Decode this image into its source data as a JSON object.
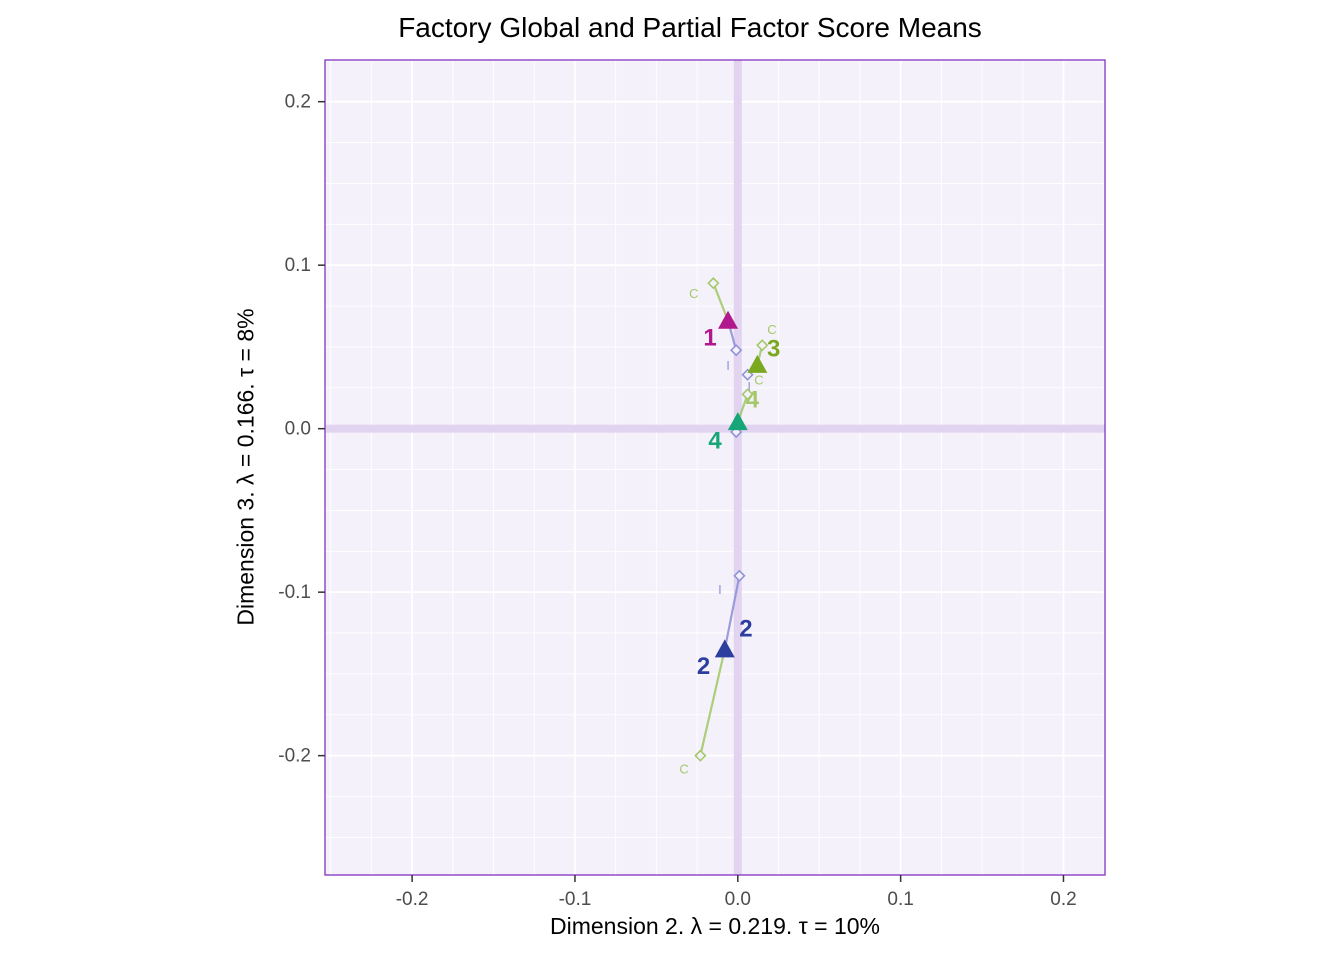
{
  "chart_data": {
    "type": "scatter",
    "title": "Factory Global and Partial Factor Score Means",
    "xlabel": "Dimension 2.   λ = 0.219.  τ = 10%",
    "ylabel": "Dimension 3.   λ = 0.166.  τ = 8%",
    "axes": {
      "xlim": [
        -0.2535,
        0.2255
      ],
      "ylim": [
        -0.273,
        0.2255
      ],
      "x_tick_labels": [
        "-0.2",
        "-0.1",
        "0.0",
        "0.1",
        "0.2"
      ],
      "x_tick_values": [
        -0.2,
        -0.1,
        0,
        0.1,
        0.2
      ],
      "y_tick_labels": [
        "-0.2",
        "-0.1",
        "0.0",
        "0.1",
        "0.2"
      ],
      "y_tick_values": [
        -0.2,
        -0.1,
        0,
        0.1,
        0.2
      ],
      "minor_step": 0.025,
      "grid_on": true,
      "grid_color": "#ffffff",
      "panel_bg": "#f5f1fa",
      "panel_border": "#8b3fc6",
      "zero_band_color": "#e2d3f1",
      "tick_color": "#333333",
      "tick_label_color": "#4d4d4d"
    },
    "tables": {
      "C": {
        "label": "C",
        "color": "#a4c96b"
      },
      "I": {
        "label": "I",
        "color": "#9193d8"
      }
    },
    "groups": [
      {
        "label": "1",
        "color": "#b1188e",
        "mean": {
          "x": -0.006,
          "y": 0.066
        },
        "labels": [
          {
            "text": "1",
            "x": -0.017,
            "y": 0.051
          }
        ],
        "partials": [
          {
            "table": "C",
            "x": -0.015,
            "y": 0.089,
            "label": {
              "text": "C",
              "x": -0.027,
              "y": 0.08
            }
          },
          {
            "table": "I",
            "x": -0.001,
            "y": 0.048,
            "label": {
              "text": "I",
              "x": -0.006,
              "y": 0.036
            }
          }
        ]
      },
      {
        "label": "2",
        "color": "#2c3e9e",
        "mean": {
          "x": -0.008,
          "y": -0.135
        },
        "labels": [
          {
            "text": "2",
            "x": 0.005,
            "y": -0.127
          },
          {
            "text": "2",
            "x": -0.021,
            "y": -0.15
          }
        ],
        "partials": [
          {
            "table": "C",
            "x": -0.023,
            "y": -0.2,
            "label": {
              "text": "C",
              "x": -0.033,
              "y": -0.211
            }
          },
          {
            "table": "I",
            "x": 0.001,
            "y": -0.09,
            "label": {
              "text": "I",
              "x": -0.011,
              "y": -0.101
            }
          }
        ]
      },
      {
        "label": "3",
        "color": "#7aa81e",
        "mean": {
          "x": 0.012,
          "y": 0.039
        },
        "labels": [
          {
            "text": "3",
            "x": 0.022,
            "y": 0.044
          }
        ],
        "partials": [
          {
            "table": "C",
            "x": 0.015,
            "y": 0.051,
            "label": {
              "text": "C",
              "x": 0.021,
              "y": 0.058
            }
          },
          {
            "table": "I",
            "x": 0.006,
            "y": 0.033,
            "label": {
              "text": "I",
              "x": 0.007,
              "y": 0.023
            }
          }
        ]
      },
      {
        "label": "4",
        "color": "#16a678",
        "mean": {
          "x": 0.0,
          "y": 0.004
        },
        "labels": [
          {
            "text": "4",
            "x": -0.014,
            "y": -0.012
          },
          {
            "text": "4",
            "x": 0.009,
            "y": 0.013,
            "color": "#a4c96b"
          }
        ],
        "partials": [
          {
            "table": "C",
            "x": 0.006,
            "y": 0.021,
            "label": {
              "text": "C",
              "x": 0.013,
              "y": 0.027
            }
          },
          {
            "table": "I",
            "x": -0.001,
            "y": -0.002,
            "label": null
          }
        ]
      }
    ]
  }
}
